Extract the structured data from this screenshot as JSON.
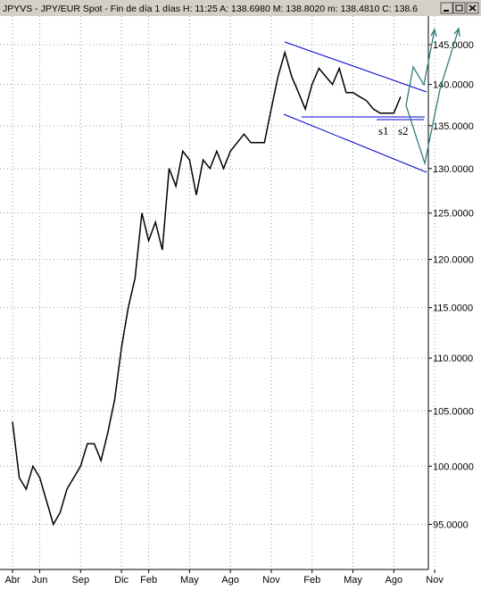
{
  "window": {
    "title": "JPYVS - JPY/EUR Spot - Fin de día 1 días  H: 11:25  A: 138.6980  M: 138.8020  m: 138.4810  C: 138.6"
  },
  "chart_data": {
    "type": "line",
    "categories": [
      "Abr",
      null,
      null,
      null,
      "Jun",
      null,
      null,
      null,
      null,
      null,
      "Sep",
      null,
      null,
      null,
      null,
      null,
      "Dic",
      null,
      null,
      null,
      "Feb",
      null,
      null,
      null,
      null,
      null,
      "May",
      null,
      null,
      null,
      null,
      null,
      "Ago",
      null,
      null,
      null,
      null,
      null,
      "Nov",
      null,
      null,
      null,
      null,
      null,
      "Feb",
      null,
      null,
      null,
      null,
      null,
      "May",
      null,
      null,
      null,
      null,
      null,
      "Ago",
      null,
      null,
      null,
      null,
      null,
      "Nov"
    ],
    "values": [
      104,
      99,
      98,
      100,
      99,
      97,
      95,
      96,
      98,
      99,
      100,
      102,
      102,
      100.5,
      103,
      106,
      111,
      115,
      118,
      125,
      122,
      124,
      121,
      130,
      128,
      132,
      131,
      127,
      131,
      130,
      132,
      130,
      132,
      133,
      134,
      133,
      133,
      133,
      137,
      141,
      144,
      141,
      139,
      137,
      140,
      142,
      141,
      140,
      142,
      139,
      139,
      138.5,
      138,
      137,
      136.5,
      136.5,
      136.5,
      138.5,
      null,
      null,
      null,
      null,
      null
    ],
    "color": "#000000",
    "ylim": [
      91.3,
      148.7
    ],
    "yticks": [
      {
        "value": 95,
        "label": "95.0000"
      },
      {
        "value": 100,
        "label": "100.0000"
      },
      {
        "value": 105,
        "label": "105.0000"
      },
      {
        "value": 110,
        "label": "110.0000"
      },
      {
        "value": 115,
        "label": "115.0000"
      },
      {
        "value": 120,
        "label": "120.0000"
      },
      {
        "value": 125,
        "label": "125.0000"
      },
      {
        "value": 130,
        "label": "130.0000"
      },
      {
        "value": 135,
        "label": "135.0000"
      },
      {
        "value": 140,
        "label": "140.0000"
      },
      {
        "value": 145,
        "label": "145.0000"
      }
    ],
    "log_scale": true,
    "grid": true,
    "annotations": [
      "s1",
      "s2"
    ]
  }
}
